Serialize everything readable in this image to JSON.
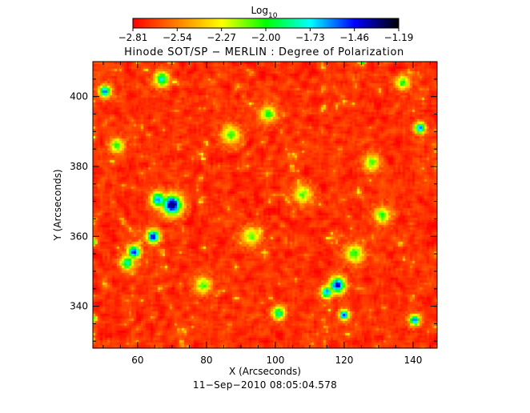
{
  "chart_data": {
    "type": "heatmap",
    "title": "Hinode SOT/SP − MERLIN : Degree of Polarization",
    "xlabel": "X (Arcseconds)",
    "ylabel": "Y (Arcseconds)",
    "xlim": [
      47,
      147
    ],
    "ylim": [
      328,
      410
    ],
    "xticks": [
      60,
      80,
      100,
      120,
      140
    ],
    "yticks": [
      340,
      360,
      380,
      400
    ],
    "x_tick_labels": [
      "60",
      "80",
      "100",
      "120",
      "140"
    ],
    "y_tick_labels": [
      "340",
      "360",
      "380",
      "400"
    ],
    "footer": "11−Sep−2010 08:05:04.578",
    "colorbar": {
      "title_base": "Log",
      "title_sub": "10",
      "range": [
        -2.81,
        -1.19
      ],
      "tick_values": [
        -2.81,
        -2.54,
        -2.27,
        -2.0,
        -1.73,
        -1.46,
        -1.19
      ],
      "tick_labels": [
        "−2.81",
        "−2.54",
        "−2.27",
        "−2.00",
        "−1.73",
        "−1.46",
        "−1.19"
      ],
      "colors": [
        "#ff0000",
        "#ff8000",
        "#ffff00",
        "#00ff00",
        "#00ffff",
        "#0000ff",
        "#000000"
      ]
    },
    "field": {
      "background_level": -2.7,
      "noise_amplitude": 0.1,
      "features": [
        {
          "x": 70.0,
          "y": 369.0,
          "peak": -1.25,
          "width": 2.0
        },
        {
          "x": 66.0,
          "y": 370.5,
          "peak": -1.55,
          "width": 1.5
        },
        {
          "x": 64.5,
          "y": 360.0,
          "peak": -1.4,
          "width": 1.3
        },
        {
          "x": 59.0,
          "y": 355.5,
          "peak": -1.45,
          "width": 1.3
        },
        {
          "x": 57.0,
          "y": 352.5,
          "peak": -1.8,
          "width": 1.4
        },
        {
          "x": 118.0,
          "y": 346.0,
          "peak": -1.4,
          "width": 1.6
        },
        {
          "x": 115.0,
          "y": 344.0,
          "peak": -1.6,
          "width": 1.2
        },
        {
          "x": 120.0,
          "y": 337.5,
          "peak": -1.45,
          "width": 1.0
        },
        {
          "x": 101.0,
          "y": 338.0,
          "peak": -1.8,
          "width": 1.3
        },
        {
          "x": 142.0,
          "y": 391.0,
          "peak": -1.55,
          "width": 1.1
        },
        {
          "x": 140.5,
          "y": 336.0,
          "peak": -1.6,
          "width": 1.1
        },
        {
          "x": 50.5,
          "y": 401.5,
          "peak": -1.6,
          "width": 1.2
        },
        {
          "x": 67.0,
          "y": 405.0,
          "peak": -1.8,
          "width": 1.5
        },
        {
          "x": 98.0,
          "y": 395.0,
          "peak": -2.0,
          "width": 1.6
        },
        {
          "x": 87.0,
          "y": 389.0,
          "peak": -2.05,
          "width": 1.8
        },
        {
          "x": 123.0,
          "y": 355.0,
          "peak": -2.0,
          "width": 1.8
        },
        {
          "x": 131.0,
          "y": 366.0,
          "peak": -2.05,
          "width": 1.6
        },
        {
          "x": 79.0,
          "y": 346.0,
          "peak": -2.05,
          "width": 1.6
        },
        {
          "x": 93.0,
          "y": 360.0,
          "peak": -2.1,
          "width": 1.8
        },
        {
          "x": 128.0,
          "y": 381.0,
          "peak": -2.05,
          "width": 1.6
        },
        {
          "x": 108.0,
          "y": 372.0,
          "peak": -2.1,
          "width": 1.8
        },
        {
          "x": 54.0,
          "y": 386.0,
          "peak": -2.0,
          "width": 1.4
        },
        {
          "x": 137.0,
          "y": 404.0,
          "peak": -2.0,
          "width": 1.4
        }
      ]
    }
  }
}
